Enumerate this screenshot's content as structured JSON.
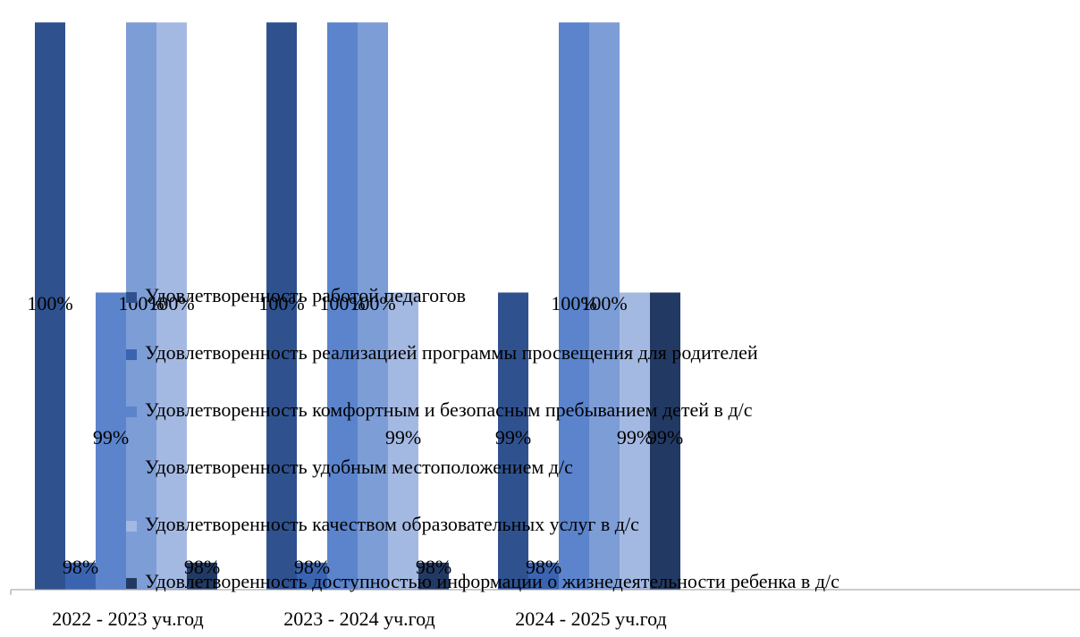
{
  "chart_data": {
    "type": "bar",
    "categories": [
      "2022 - 2023 уч.год",
      "2023 - 2024 уч.год",
      "2024 - 2025 уч.год"
    ],
    "series": [
      {
        "name": "Удовлетворенность работой педагогов",
        "values": [
          100,
          100,
          99
        ],
        "labels": [
          "100%",
          "100%",
          "99%"
        ],
        "color": "#2f528f"
      },
      {
        "name": "Удовлетворенность реализацией программы просвещения для родителей",
        "values": [
          98,
          98,
          98
        ],
        "labels": [
          "98%",
          "98%",
          "98%"
        ],
        "color": "#3a64b0"
      },
      {
        "name": "Удовлетворенность комфортным и безопасным пребыванием детей в д/с",
        "values": [
          99,
          100,
          100
        ],
        "labels": [
          "99%",
          "100%",
          "100%"
        ],
        "color": "#5b84cc"
      },
      {
        "name": "Удовлетворенность удобным местоположением д/с",
        "values": [
          100,
          100,
          100
        ],
        "labels": [
          "100%",
          "100%",
          "100%"
        ],
        "color": "#7d9dd6"
      },
      {
        "name": "Удовлетворенность качеством образовательных услуг в д/с",
        "values": [
          100,
          99,
          99
        ],
        "labels": [
          "100%",
          "99%",
          "99%"
        ],
        "color": "#a4b9e2"
      },
      {
        "name": "Удовлетворенность доступностью информации о жизнедеятельности ребенка в д/с",
        "values": [
          98,
          98,
          99
        ],
        "labels": [
          "98%",
          "98%",
          "99%"
        ],
        "color": "#223a63"
      }
    ],
    "ylim": [
      97.9,
      100.05
    ],
    "legend": "overlaid-center",
    "grid": false
  }
}
